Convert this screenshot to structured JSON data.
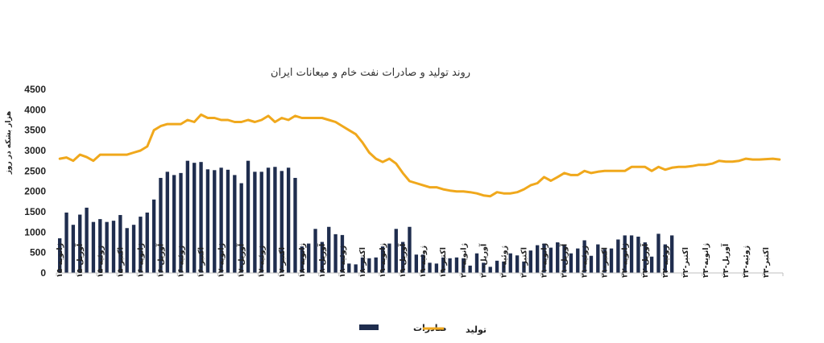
{
  "chart_data": {
    "type": "bar",
    "title": "روند تولید و صادرات نفت خام و میعانات ایران",
    "ylabel": "هزار بشکه در روز",
    "ylim": [
      0,
      4500
    ],
    "yticks": [
      0,
      500,
      1000,
      1500,
      2000,
      2500,
      3000,
      3500,
      4000,
      4500
    ],
    "grid": false,
    "legend_position": "bottom",
    "x_tick_labels": [
      "ژانویه-۱۵",
      "آوریل-۱۵",
      "ژوئیه-۱۵",
      "اکتبر-۱۵",
      "ژانویه-۱۶",
      "آوریل-۱۶",
      "ژوئیه-۱۶",
      "اکتبر-۱۶",
      "ژانویه-۱۷",
      "آوریل-۱۷",
      "ژوئیه-۱۷",
      "اکتبر-۱۷",
      "ژانویه-۱۸",
      "آوریل-۱۸",
      "ژوئیه-۱۸",
      "اکتبر-۱۸",
      "ژانویه-۱۹",
      "آوریل-۱۹",
      "ژوئیه-۱۹",
      "اکتبر-۱۹",
      "ژانویه-۲۰",
      "آوریل-۲۰",
      "ژوئیه-۲۰",
      "اکتبر-۲۰",
      "ژانویه-۲۱",
      "آوریل-۲۱",
      "ژوئیه-۲۱",
      "اکتبر-۲۱",
      "ژانویه-۲۲",
      "آوریل-۲۲",
      "ژوئیه-۲۲",
      "اکتبر-۲۲",
      "ژانویه-۲۳",
      "آوریل-۲۳",
      "ژوئیه-۲۳",
      "اکتبر-۲۳"
    ],
    "series": [
      {
        "name": "صادرات",
        "type": "bar",
        "color": "#1f2d4e",
        "values": [
          850,
          1480,
          1180,
          1430,
          1600,
          1250,
          1320,
          1250,
          1280,
          1420,
          1100,
          1180,
          1380,
          1480,
          1800,
          2330,
          2480,
          2400,
          2450,
          2750,
          2700,
          2720,
          2540,
          2520,
          2580,
          2530,
          2400,
          2200,
          2750,
          2480,
          2480,
          2580,
          2600,
          2500,
          2580,
          2330,
          650,
          720,
          1080,
          760,
          1130,
          950,
          930,
          230,
          210,
          380,
          360,
          380,
          650,
          720,
          1080,
          760,
          1130,
          450,
          450,
          250,
          230,
          380,
          360,
          380,
          360,
          180,
          480,
          250,
          150,
          300,
          280,
          480,
          430,
          280,
          550,
          680,
          720,
          620,
          750,
          700,
          480,
          600,
          800,
          420,
          700,
          580,
          600,
          820,
          920,
          920,
          890,
          750,
          400,
          960,
          700,
          920,
          null,
          null,
          null,
          null,
          null,
          null,
          null,
          null,
          null,
          null,
          null,
          null,
          null,
          null,
          null,
          null,
          null,
          null,
          null,
          null
        ]
      },
      {
        "name": "تولید",
        "type": "line",
        "color": "#f0a81c",
        "values": [
          2800,
          2830,
          2750,
          2900,
          2840,
          2750,
          2900,
          2900,
          2900,
          2900,
          2900,
          2950,
          3000,
          3100,
          3500,
          3600,
          3650,
          3650,
          3650,
          3750,
          3700,
          3880,
          3800,
          3800,
          3750,
          3750,
          3700,
          3700,
          3750,
          3700,
          3750,
          3850,
          3700,
          3800,
          3750,
          3850,
          3800,
          3800,
          3800,
          3800,
          3750,
          3700,
          3600,
          3500,
          3400,
          3200,
          2950,
          2800,
          2720,
          2800,
          2680,
          2450,
          2250,
          2200,
          2150,
          2100,
          2100,
          2050,
          2020,
          2000,
          2000,
          1980,
          1950,
          1900,
          1880,
          1980,
          1950,
          1950,
          1980,
          2050,
          2150,
          2200,
          2350,
          2260,
          2350,
          2450,
          2400,
          2400,
          2500,
          2450,
          2480,
          2500,
          2500,
          2500,
          2500,
          2600,
          2600,
          2600,
          2500,
          2600,
          2530,
          2580,
          2600,
          2600,
          2620,
          2650,
          2650,
          2680,
          2750,
          2730,
          2730,
          2750,
          2800,
          2780,
          2780,
          2790,
          2800,
          2780
        ]
      }
    ]
  }
}
